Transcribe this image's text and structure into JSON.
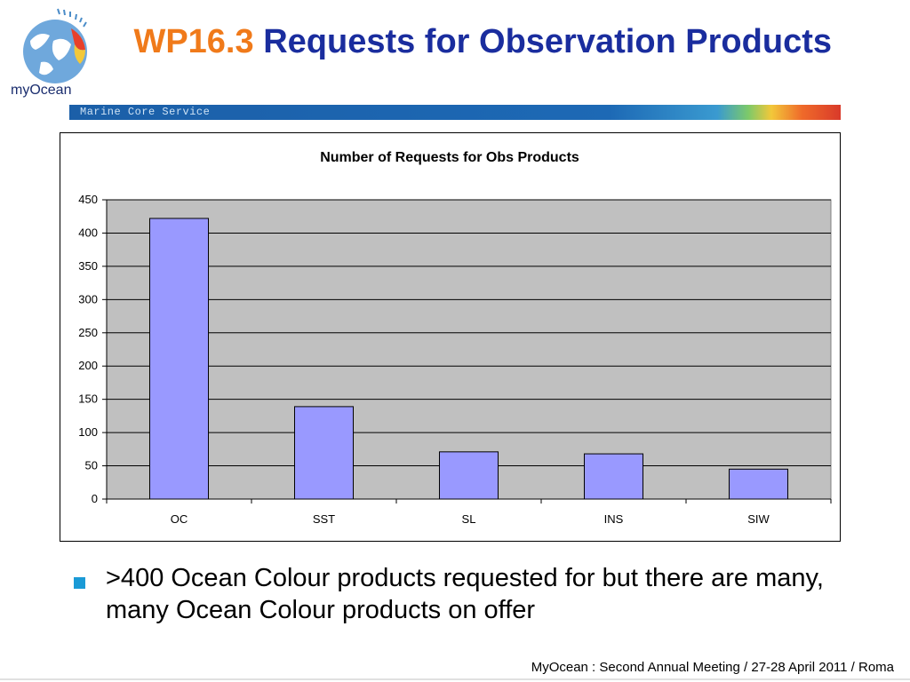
{
  "header": {
    "title_code": "WP16.3",
    "title_main": "Requests for Observation Products",
    "logo_text": "myOcean",
    "banner_text": "Marine Core Service"
  },
  "chart_data": {
    "type": "bar",
    "title": "Number of Requests for Obs Products",
    "categories": [
      "OC",
      "SST",
      "SL",
      "INS",
      "SIW"
    ],
    "values": [
      422,
      139,
      71,
      68,
      45
    ],
    "ylim": [
      0,
      450
    ],
    "yticks": [
      0,
      50,
      100,
      150,
      200,
      250,
      300,
      350,
      400,
      450
    ],
    "xlabel": "",
    "ylabel": "",
    "grid": true,
    "colors": {
      "bar": "#9999ff",
      "plot_bg": "#c0c0c0"
    }
  },
  "bullets": [
    ">400 Ocean Colour products requested for but there are many, many Ocean Colour products on offer"
  ],
  "footer": "MyOcean : Second Annual Meeting / 27-28 April 2011 / Roma"
}
